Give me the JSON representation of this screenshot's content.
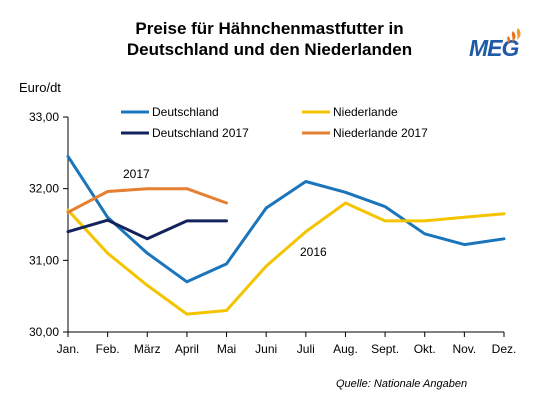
{
  "title_line1": "Preise für Hähnchenmastfutter  in",
  "title_line2": "Deutschland und den Niederlanden",
  "logo_text": "MEG",
  "y_unit": "Euro/dt",
  "source": "Quelle: Nationale Angaben",
  "chart_data": {
    "type": "line",
    "categories": [
      "Jan.",
      "Feb.",
      "März",
      "April",
      "Mai",
      "Juni",
      "Juli",
      "Aug.",
      "Sept.",
      "Okt.",
      "Nov.",
      "Dez."
    ],
    "y_tick_labels": [
      "33,00",
      "32,00",
      "31,00",
      "30,00"
    ],
    "ylim": [
      30,
      33
    ],
    "grid": false,
    "legend_placement": "top",
    "annotations": [
      "2017",
      "2016"
    ],
    "series": [
      {
        "name": "Deutschland",
        "color": "#1b75bb",
        "values": [
          32.45,
          31.6,
          31.1,
          30.7,
          30.95,
          31.73,
          32.1,
          31.95,
          31.75,
          31.37,
          31.22,
          31.3
        ]
      },
      {
        "name": "Niederlande",
        "color": "#f5c400",
        "values": [
          31.7,
          31.1,
          30.65,
          30.25,
          30.3,
          30.92,
          31.4,
          31.8,
          31.55,
          31.55,
          31.6,
          31.65
        ]
      },
      {
        "name": "Deutschland 2017",
        "color": "#14235b",
        "values": [
          31.4,
          31.56,
          31.3,
          31.55,
          31.55,
          null,
          null,
          null,
          null,
          null,
          null,
          null
        ]
      },
      {
        "name": "Niederlande 2017",
        "color": "#e58032",
        "values": [
          31.67,
          31.96,
          32.0,
          32.0,
          31.8,
          null,
          null,
          null,
          null,
          null,
          null,
          null
        ]
      }
    ]
  }
}
